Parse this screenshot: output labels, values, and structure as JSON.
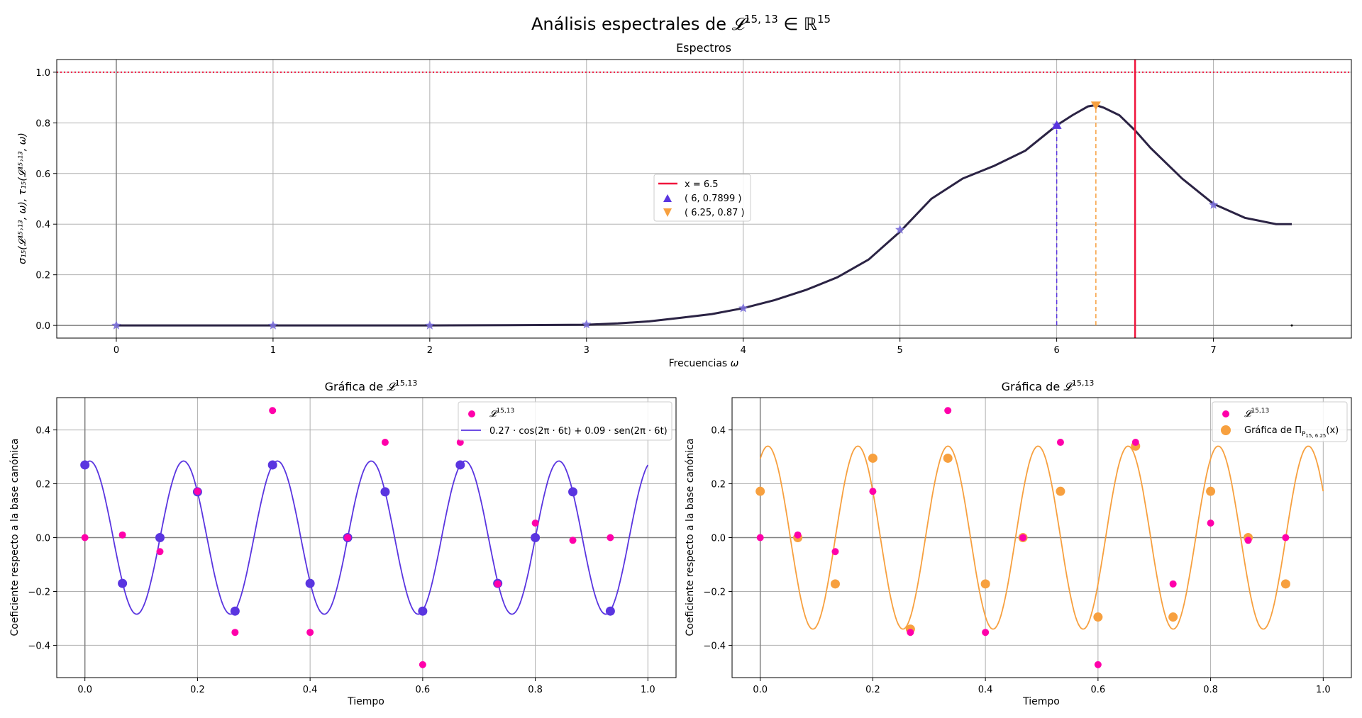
{
  "figure": {
    "suptitle_prefix": "Análisis espectrales de ",
    "suptitle_sym": "𝓛",
    "suptitle_sup": "15, 13",
    "suptitle_in": " ∈ ℝ",
    "suptitle_dim": "15"
  },
  "colors": {
    "spectrum": "#2b2344",
    "sample_star": "#7b6fd9",
    "red_line": "#f0143c",
    "blue": "#5a35e0",
    "orange": "#f7a03f",
    "magenta": "#ff00aa",
    "grid": "#b0b0b0",
    "zero_axis": "#808080"
  },
  "chart_data": [
    {
      "type": "line",
      "title": "Espectros",
      "xlabel_text": "Frecuencias ",
      "xlabel_omega": "ω",
      "ylabel": "σ₁₅(𝓛¹⁵˒¹³, ω), τ₁₅(𝓛¹⁵˒¹³, ω)",
      "xlim": [
        -0.38,
        7.88
      ],
      "ylim": [
        -0.05,
        1.05
      ],
      "xticks": [
        0,
        1,
        2,
        3,
        4,
        5,
        6,
        7
      ],
      "yticks": [
        0.0,
        0.2,
        0.4,
        0.6,
        0.8,
        1.0
      ],
      "grid": true,
      "hline_dotted": 1.0,
      "vline_solid": 6.5,
      "curve": {
        "x": [
          0,
          0.5,
          1,
          1.5,
          2,
          2.5,
          3,
          3.2,
          3.4,
          3.6,
          3.8,
          4,
          4.2,
          4.4,
          4.6,
          4.8,
          5,
          5.2,
          5.4,
          5.6,
          5.8,
          6,
          6.1,
          6.2,
          6.25,
          6.3,
          6.4,
          6.5,
          6.6,
          6.8,
          7,
          7.2,
          7.4,
          7.5
        ],
        "y": [
          0,
          0,
          0,
          0,
          0,
          0.001,
          0.003,
          0.008,
          0.016,
          0.03,
          0.045,
          0.068,
          0.1,
          0.14,
          0.19,
          0.26,
          0.37,
          0.5,
          0.58,
          0.63,
          0.69,
          0.79,
          0.83,
          0.865,
          0.87,
          0.86,
          0.83,
          0.77,
          0.7,
          0.58,
          0.48,
          0.425,
          0.4,
          0.4
        ]
      },
      "stars": {
        "x": [
          0,
          1,
          2,
          3,
          4,
          5,
          6,
          7
        ],
        "y": [
          0,
          0,
          0,
          0.004,
          0.068,
          0.378,
          0.79,
          0.476
        ]
      },
      "markers": [
        {
          "x": 6,
          "y": 0.7899,
          "shape": "triangle-up",
          "label": "( 6, 0.7899 )"
        },
        {
          "x": 6.25,
          "y": 0.87,
          "shape": "triangle-down",
          "label": "( 6.25, 0.87 )"
        }
      ],
      "legend": {
        "placement": "center",
        "entries": [
          "x = 6.5",
          "( 6, 0.7899 )",
          "( 6.25, 0.87 )"
        ]
      }
    },
    {
      "type": "scatter",
      "title_prefix": "Gráfica de ",
      "title_sym": "𝓛",
      "title_sup": "15,13",
      "xlabel": "Tiempo",
      "ylabel": "Coeficiente respecto a la base canónica",
      "xlim": [
        -0.05,
        1.05
      ],
      "ylim": [
        -0.52,
        0.52
      ],
      "xticks": [
        0.0,
        0.2,
        0.4,
        0.6,
        0.8,
        1.0
      ],
      "yticks": [
        -0.4,
        -0.2,
        0.0,
        0.2,
        0.4
      ],
      "grid": true,
      "signal": {
        "label_sym": "𝓛",
        "label_sup": "15,13",
        "x": [
          0,
          0.0667,
          0.1333,
          0.2,
          0.2667,
          0.3333,
          0.4,
          0.4667,
          0.5333,
          0.6,
          0.6667,
          0.7333,
          0.8,
          0.8667,
          0.9333
        ],
        "y": [
          0.0,
          0.01,
          -0.052,
          0.172,
          -0.352,
          0.472,
          -0.352,
          0.0,
          0.354,
          -0.472,
          0.354,
          -0.172,
          0.054,
          -0.01,
          0.0
        ]
      },
      "fit": {
        "label": "0.27 · cos(2π · 6t) + 0.09 · sen(2π · 6t)",
        "a": 0.27,
        "b": 0.09,
        "freq": 6
      },
      "fit_samples": {
        "x": [
          0,
          0.0667,
          0.1333,
          0.2,
          0.2667,
          0.3333,
          0.4,
          0.4667,
          0.5333,
          0.6,
          0.6667,
          0.7333,
          0.8,
          0.8667,
          0.9333
        ],
        "y": [
          0.27,
          -0.17,
          0.0,
          0.17,
          -0.273,
          0.27,
          -0.17,
          0.0,
          0.17,
          -0.273,
          0.27,
          -0.17,
          0.0,
          0.17,
          -0.273
        ]
      },
      "legend": {
        "placement": "upper right"
      }
    },
    {
      "type": "scatter",
      "title_prefix": "Gráfica de ",
      "title_sym": "𝓛",
      "title_sup": "15,13",
      "xlabel": "Tiempo",
      "ylabel": "Coeficiente respecto a la base canónica",
      "xlim": [
        -0.05,
        1.05
      ],
      "ylim": [
        -0.52,
        0.52
      ],
      "xticks": [
        0.0,
        0.2,
        0.4,
        0.6,
        0.8,
        1.0
      ],
      "yticks": [
        -0.4,
        -0.2,
        0.0,
        0.2,
        0.4
      ],
      "grid": true,
      "signal": {
        "label_sym": "𝓛",
        "label_sup": "15,13",
        "x": [
          0,
          0.0667,
          0.1333,
          0.2,
          0.2667,
          0.3333,
          0.4,
          0.4667,
          0.5333,
          0.6,
          0.6667,
          0.7333,
          0.8,
          0.8667,
          0.9333
        ],
        "y": [
          0.0,
          0.01,
          -0.052,
          0.172,
          -0.352,
          0.472,
          -0.352,
          0.0,
          0.354,
          -0.472,
          0.354,
          -0.172,
          0.054,
          -0.01,
          0.0
        ]
      },
      "projection": {
        "label_prefix": "Gráfica de Π",
        "label_sub": "P",
        "label_subsub": "15, 6.25",
        "label_suffix": "(x)",
        "amplitude": 0.34,
        "freq": 6.25,
        "phase": 1.04
      },
      "projection_samples": {
        "x": [
          0,
          0.0667,
          0.1333,
          0.2,
          0.2667,
          0.3333,
          0.4,
          0.4667,
          0.5333,
          0.6,
          0.6667,
          0.7333,
          0.8,
          0.8667,
          0.9333
        ],
        "y": [
          0.172,
          0.0,
          -0.172,
          0.295,
          -0.34,
          0.295,
          -0.172,
          0.0,
          0.172,
          -0.295,
          0.34,
          -0.295,
          0.172,
          0.0,
          -0.172
        ]
      },
      "legend": {
        "placement": "upper right"
      }
    }
  ]
}
